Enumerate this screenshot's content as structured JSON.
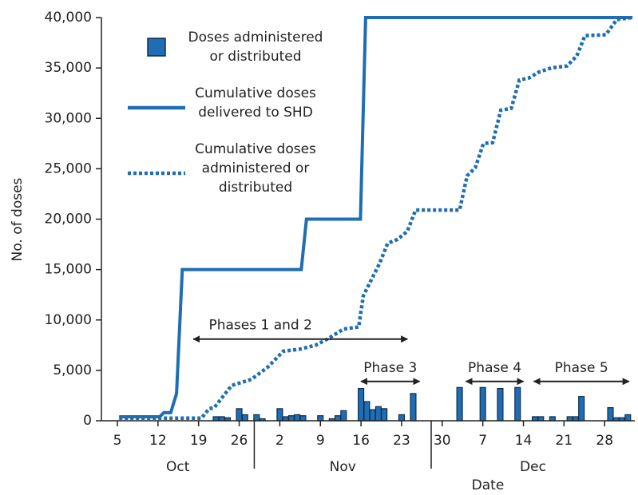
{
  "chart_data": {
    "type": "bar",
    "x_label": "Date",
    "y_label": "No. of doses",
    "xlim": [
      2.25,
      94.2
    ],
    "ylim": [
      0,
      40000
    ],
    "xticks": [
      5,
      12,
      19,
      26,
      {
        "value": 33,
        "label": "2"
      },
      {
        "value": 40,
        "label": "9"
      },
      {
        "value": 47,
        "label": "16"
      },
      {
        "value": 54,
        "label": "23"
      },
      {
        "value": 61,
        "label": "30"
      },
      {
        "value": 68,
        "label": "7"
      },
      {
        "value": 75,
        "label": "14"
      },
      {
        "value": 82,
        "label": "21"
      },
      {
        "value": 89,
        "label": "28"
      }
    ],
    "yticks": [
      0,
      {
        "value": 5000,
        "label": "5,000"
      },
      {
        "value": 10000,
        "label": "10,000"
      },
      {
        "value": 15000,
        "label": "15,000"
      },
      {
        "value": 20000,
        "label": "20,000"
      },
      {
        "value": 25000,
        "label": "25,000"
      },
      {
        "value": 30000,
        "label": "30,000"
      },
      {
        "value": 35000,
        "label": "35,000"
      },
      {
        "value": 40000,
        "label": "40,000"
      }
    ],
    "months": [
      {
        "label": "Oct",
        "range": [
          2.25,
          28.6
        ]
      },
      {
        "label": "Nov",
        "range": [
          28.6,
          59.1
        ]
      },
      {
        "label": "Dec",
        "range": [
          59.1,
          94.2
        ]
      }
    ],
    "series": [
      {
        "name": "Doses administered or distributed",
        "type": "bar",
        "color": "#1f6db2",
        "x": [
          22,
          23,
          24,
          26,
          27,
          29,
          30,
          33,
          34,
          35,
          36,
          37,
          40,
          42,
          43,
          44,
          47,
          48,
          49,
          50,
          51,
          54,
          56,
          64,
          68,
          71,
          74,
          77,
          78,
          80,
          83,
          84,
          85,
          90,
          91,
          92,
          93
        ],
        "values": [
          400,
          400,
          300,
          1200,
          600,
          600,
          200,
          1200,
          400,
          500,
          600,
          500,
          500,
          200,
          500,
          1000,
          3200,
          1900,
          1100,
          1400,
          1200,
          600,
          2700,
          3300,
          3300,
          3200,
          3300,
          400,
          400,
          400,
          400,
          400,
          2400,
          1300,
          300,
          300,
          600
        ]
      },
      {
        "name": "Cumulative doses delivered to SHD",
        "type": "line",
        "style": "solid",
        "color": "#1f6db2",
        "x": [
          5.3,
          12.3,
          13,
          14.2,
          15.2,
          16.2,
          36.7,
          37.6,
          46.9,
          47.8,
          93.8
        ],
        "values": [
          400,
          400,
          800,
          800,
          2700,
          15000,
          15000,
          20000,
          20000,
          40000,
          40000
        ]
      },
      {
        "name": "Cumulative doses administered or distributed",
        "type": "line",
        "style": "dotted",
        "color": "#1f6db2",
        "x": [
          5.3,
          19.5,
          20.8,
          21.7,
          24.7,
          28.1,
          30.9,
          33.6,
          36.4,
          39.2,
          41.2,
          44,
          46.6,
          47.4,
          50.2,
          51.6,
          53.3,
          55,
          56.4,
          64,
          65.3,
          66.7,
          68.1,
          69.7,
          71.1,
          72.9,
          74.3,
          75.9,
          77.7,
          79.8,
          82.5,
          84.2,
          85.6,
          89.2,
          91.1,
          93.8
        ],
        "values": [
          250,
          250,
          1200,
          1300,
          3500,
          4100,
          5300,
          6900,
          7100,
          7500,
          8100,
          9100,
          9300,
          12400,
          15600,
          17600,
          18000,
          18800,
          20900,
          20900,
          24300,
          25100,
          27500,
          27600,
          30800,
          31000,
          33800,
          34000,
          34600,
          35000,
          35200,
          36200,
          38200,
          38300,
          39800,
          40000
        ]
      }
    ],
    "annotations": [
      {
        "text": "Phases 1 and 2",
        "x": [
          18.1,
          55.0
        ],
        "y": 8100
      },
      {
        "text": "Phase 3",
        "x": [
          47.0,
          57.1
        ],
        "y": 3900
      },
      {
        "text": "Phase 4",
        "x": [
          65.1,
          75.0
        ],
        "y": 3900
      },
      {
        "text": "Phase 5",
        "x": [
          76.8,
          93.2
        ],
        "y": 3900
      }
    ]
  }
}
